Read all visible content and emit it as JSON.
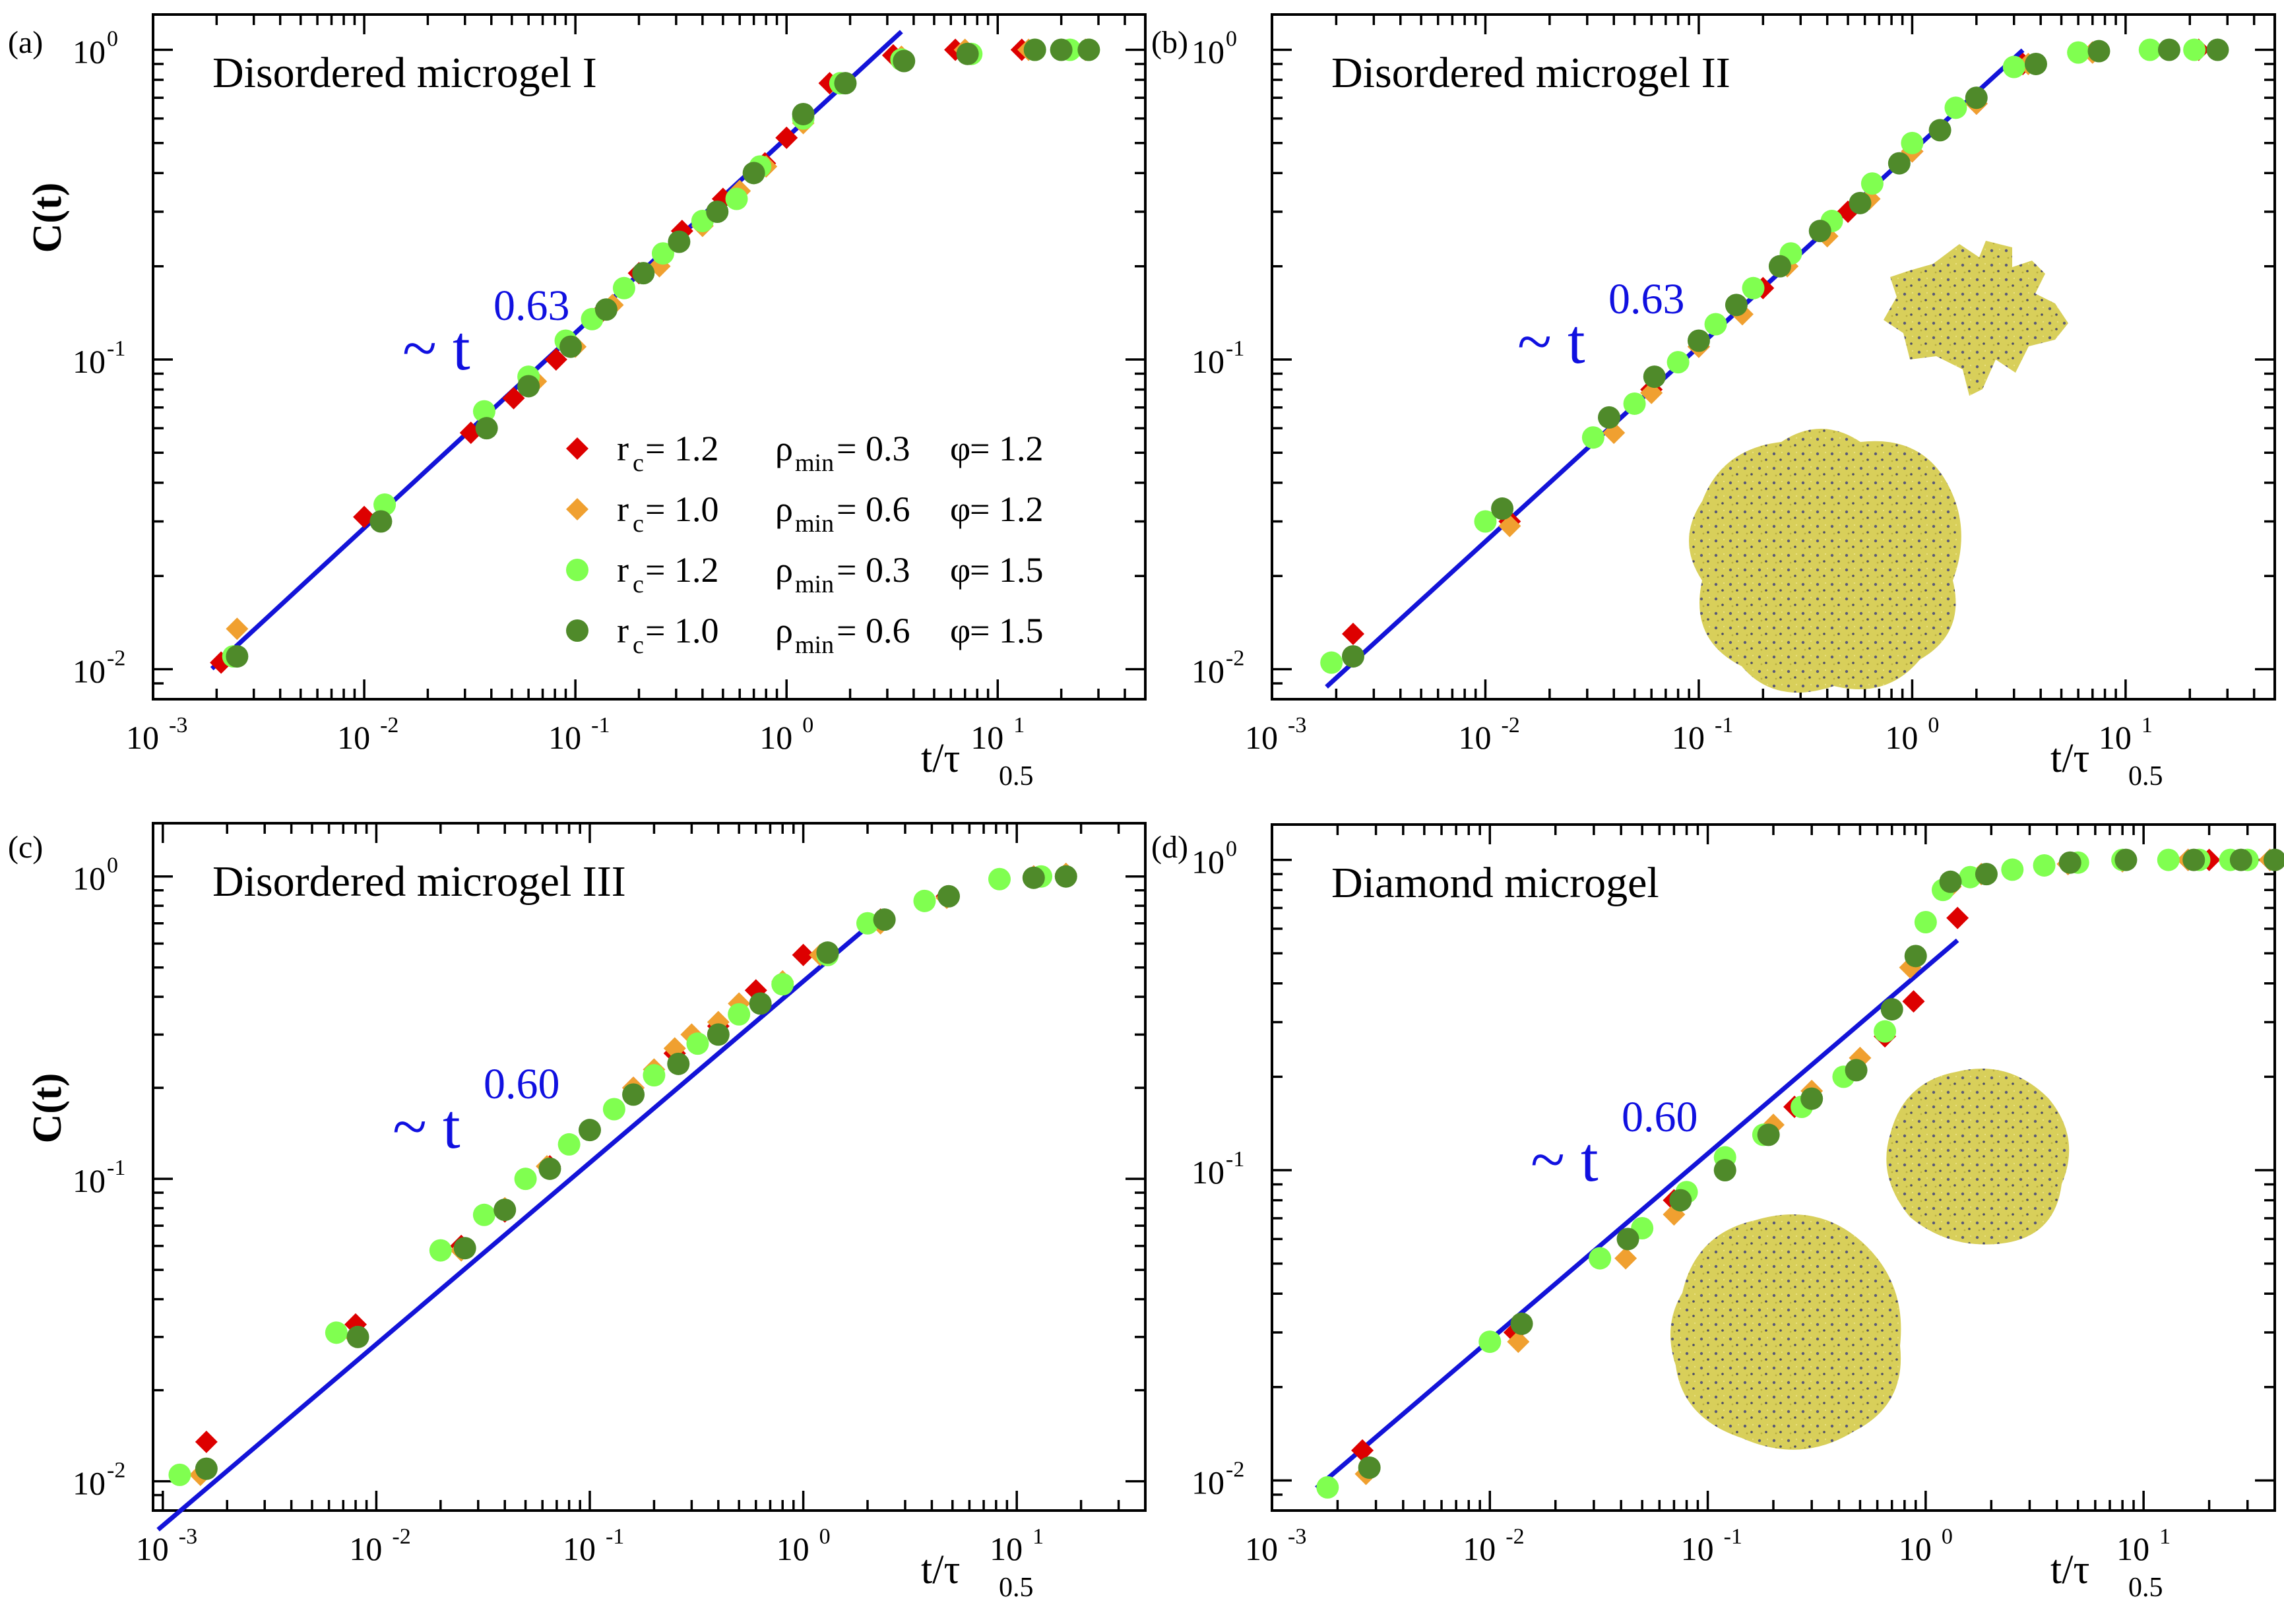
{
  "x_axis_label": "t/τ",
  "x_axis_label_sub": "0.5",
  "y_axis_label": "C(t)",
  "legend": [
    {
      "rc": "1.2",
      "rho": "0.3",
      "phi": "1.2",
      "color": "#dd0000",
      "marker": "diamond"
    },
    {
      "rc": "1.0",
      "rho": "0.6",
      "phi": "1.2",
      "color": "#f0a030",
      "marker": "diamond"
    },
    {
      "rc": "1.2",
      "rho": "0.3",
      "phi": "1.5",
      "color": "#80ff50",
      "marker": "circle"
    },
    {
      "rc": "1.0",
      "rho": "0.6",
      "phi": "1.5",
      "color": "#4f8a2a",
      "marker": "circle"
    }
  ],
  "legend_labels": {
    "rc": "r",
    "rc_sub": "c",
    "rho": "ρ",
    "rho_sub": "min",
    "phi": "φ",
    "eq": " = "
  },
  "x_ticks": [
    {
      "base": "10",
      "exp": "-3"
    },
    {
      "base": "10",
      "exp": "-2"
    },
    {
      "base": "10",
      "exp": "-1"
    },
    {
      "base": "10",
      "exp": "0"
    },
    {
      "base": "10",
      "exp": "1"
    }
  ],
  "y_ticks": [
    {
      "base": "10",
      "exp": "-2"
    },
    {
      "base": "10",
      "exp": "-1"
    },
    {
      "base": "10",
      "exp": "0"
    }
  ],
  "chart_data": [
    {
      "panel": "(a)",
      "title": "Disordered microgel I",
      "type": "scatter",
      "xscale": "log",
      "yscale": "log",
      "xlim": [
        0.001,
        50
      ],
      "ylim": [
        0.008,
        1.3
      ],
      "fit": {
        "label": "~ t",
        "exponent": "0.63",
        "x_range": [
          0.0019,
          3.5
        ]
      },
      "series": [
        {
          "name": "rc=1.2 ρmin=0.3 φ=1.2",
          "x": [
            0.0021,
            0.01,
            0.032,
            0.051,
            0.081,
            0.13,
            0.2,
            0.32,
            0.5,
            0.79,
            1.0,
            1.6,
            3.2,
            6.3,
            13,
            20,
            26
          ],
          "y": [
            0.0105,
            0.031,
            0.058,
            0.075,
            0.1,
            0.14,
            0.19,
            0.26,
            0.33,
            0.43,
            0.52,
            0.78,
            0.96,
            1.0,
            1.0,
            1.0,
            1.0
          ]
        },
        {
          "name": "rc=1.0 ρmin=0.6 φ=1.2",
          "x": [
            0.0025,
            0.012,
            0.038,
            0.065,
            0.1,
            0.15,
            0.25,
            0.4,
            0.6,
            0.8,
            1.2,
            1.8,
            3.5,
            7,
            14,
            20,
            26
          ],
          "y": [
            0.0135,
            0.03,
            0.06,
            0.085,
            0.11,
            0.15,
            0.2,
            0.27,
            0.35,
            0.42,
            0.58,
            0.78,
            0.95,
            1.0,
            1.0,
            1.0,
            1.0
          ]
        },
        {
          "name": "rc=1.2 ρmin=0.3 φ=1.5",
          "x": [
            0.0024,
            0.0125,
            0.037,
            0.06,
            0.09,
            0.12,
            0.17,
            0.26,
            0.4,
            0.58,
            0.75,
            1.2,
            1.8,
            3.5,
            7.5,
            15,
            22,
            27
          ],
          "y": [
            0.011,
            0.034,
            0.068,
            0.088,
            0.115,
            0.135,
            0.17,
            0.22,
            0.28,
            0.33,
            0.42,
            0.6,
            0.78,
            0.93,
            0.97,
            1.0,
            1.0,
            1.0
          ]
        },
        {
          "name": "rc=1.0 ρmin=0.6 φ=1.5",
          "x": [
            0.0025,
            0.012,
            0.038,
            0.06,
            0.095,
            0.14,
            0.21,
            0.31,
            0.47,
            0.7,
            1.2,
            1.9,
            3.6,
            7.2,
            15,
            20,
            27
          ],
          "y": [
            0.011,
            0.03,
            0.06,
            0.082,
            0.11,
            0.145,
            0.19,
            0.24,
            0.3,
            0.4,
            0.62,
            0.78,
            0.92,
            0.97,
            1.0,
            1.0,
            1.0
          ]
        }
      ]
    },
    {
      "panel": "(b)",
      "title": "Disordered microgel II",
      "type": "scatter",
      "xscale": "log",
      "yscale": "log",
      "xlim": [
        0.001,
        50
      ],
      "ylim": [
        0.008,
        1.3
      ],
      "fit": {
        "label": "~ t",
        "exponent": "0.63",
        "x_range": [
          0.0018,
          3.3
        ]
      },
      "series": [
        {
          "name": "rc=1.2 ρmin=0.3 φ=1.2",
          "x": [
            0.0024,
            0.013,
            0.06,
            0.1,
            0.2,
            0.5,
            1.0,
            2.0,
            3.3,
            7.0,
            16,
            22
          ],
          "y": [
            0.013,
            0.03,
            0.08,
            0.11,
            0.17,
            0.3,
            0.47,
            0.67,
            0.9,
            0.98,
            1.0,
            1.0
          ]
        },
        {
          "name": "rc=1.0 ρmin=0.6 φ=1.2",
          "x": [
            0.0024,
            0.013,
            0.04,
            0.06,
            0.1,
            0.16,
            0.26,
            0.4,
            0.63,
            1.0,
            2.0,
            3.5,
            7.0,
            16,
            27
          ],
          "y": [
            0.011,
            0.029,
            0.058,
            0.078,
            0.11,
            0.14,
            0.2,
            0.25,
            0.33,
            0.47,
            0.67,
            0.9,
            0.98,
            1.0,
            1.0
          ]
        },
        {
          "name": "rc=1.2 ρmin=0.3 φ=1.5",
          "x": [
            0.0019,
            0.01,
            0.032,
            0.05,
            0.08,
            0.12,
            0.18,
            0.27,
            0.42,
            0.65,
            1.0,
            1.6,
            3.0,
            6.0,
            13,
            21
          ],
          "y": [
            0.0105,
            0.03,
            0.056,
            0.072,
            0.098,
            0.13,
            0.17,
            0.22,
            0.28,
            0.37,
            0.5,
            0.65,
            0.88,
            0.98,
            1.0,
            1.0
          ]
        },
        {
          "name": "rc=1.0 ρmin=0.6 φ=1.5",
          "x": [
            0.0024,
            0.012,
            0.038,
            0.062,
            0.1,
            0.15,
            0.24,
            0.37,
            0.57,
            0.87,
            1.35,
            2.0,
            3.8,
            7.5,
            16,
            27
          ],
          "y": [
            0.011,
            0.033,
            0.065,
            0.088,
            0.115,
            0.15,
            0.2,
            0.26,
            0.32,
            0.43,
            0.55,
            0.7,
            0.9,
            0.99,
            1.0,
            1.0
          ]
        }
      ]
    },
    {
      "panel": "(c)",
      "title": "Disordered microgel III",
      "type": "scatter",
      "xscale": "log",
      "yscale": "log",
      "xlim": [
        0.0009,
        40
      ],
      "ylim": [
        0.008,
        1.5
      ],
      "fit": {
        "label": "~ t",
        "exponent": "0.60",
        "x_range": [
          0.00095,
          2.1
        ]
      },
      "series": [
        {
          "name": "rc=1.2 ρmin=0.3 φ=1.2",
          "x": [
            0.0016,
            0.008,
            0.025,
            0.04,
            0.065,
            0.1,
            0.16,
            0.25,
            0.4,
            0.6,
            1.0,
            2.3,
            4.7,
            12,
            17
          ],
          "y": [
            0.0135,
            0.033,
            0.06,
            0.078,
            0.11,
            0.145,
            0.2,
            0.26,
            0.32,
            0.42,
            0.55,
            0.72,
            0.86,
            1.0,
            1.0
          ]
        },
        {
          "name": "rc=1.0 ρmin=0.6 φ=1.2",
          "x": [
            0.0015,
            0.008,
            0.025,
            0.04,
            0.063,
            0.1,
            0.13,
            0.16,
            0.2,
            0.25,
            0.3,
            0.4,
            0.5,
            0.8,
            1.2,
            2.3,
            4.7,
            12,
            17
          ],
          "y": [
            0.0105,
            0.03,
            0.058,
            0.08,
            0.11,
            0.145,
            0.17,
            0.2,
            0.23,
            0.27,
            0.3,
            0.33,
            0.38,
            0.45,
            0.55,
            0.7,
            0.85,
            1.0,
            1.02
          ]
        },
        {
          "name": "rc=1.2 ρmin=0.3 φ=1.5",
          "x": [
            0.0012,
            0.0065,
            0.02,
            0.032,
            0.05,
            0.08,
            0.13,
            0.2,
            0.32,
            0.5,
            0.8,
            1.3,
            2.0,
            3.7,
            8.3,
            13
          ],
          "y": [
            0.0105,
            0.031,
            0.058,
            0.076,
            0.1,
            0.13,
            0.17,
            0.22,
            0.28,
            0.35,
            0.44,
            0.55,
            0.7,
            0.83,
            0.98,
            1.0
          ]
        },
        {
          "name": "rc=1.0 ρmin=0.6 φ=1.5",
          "x": [
            0.0016,
            0.0082,
            0.026,
            0.04,
            0.065,
            0.1,
            0.16,
            0.26,
            0.4,
            0.63,
            1.3,
            2.4,
            4.8,
            12,
            17
          ],
          "y": [
            0.011,
            0.03,
            0.059,
            0.079,
            0.108,
            0.145,
            0.19,
            0.24,
            0.3,
            0.38,
            0.56,
            0.72,
            0.86,
            0.99,
            1.0
          ]
        }
      ]
    },
    {
      "panel": "(d)",
      "title": "Diamond microgel",
      "type": "scatter",
      "xscale": "log",
      "yscale": "log",
      "xlim": [
        0.001,
        40
      ],
      "ylim": [
        0.008,
        1.3
      ],
      "fit": {
        "label": "~ t",
        "exponent": "0.60",
        "x_range": [
          0.0016,
          1.4
        ]
      },
      "series": [
        {
          "name": "rc=1.2 ρmin=0.3 φ=1.2",
          "x": [
            0.0026,
            0.013,
            0.07,
            0.25,
            0.65,
            0.88,
            1.4,
            4.5,
            8,
            16,
            20,
            38
          ],
          "y": [
            0.0125,
            0.03,
            0.08,
            0.16,
            0.27,
            0.35,
            0.65,
            0.97,
            0.99,
            1.0,
            1.0,
            1.0
          ]
        },
        {
          "name": "rc=1.0 ρmin=0.6 φ=1.2",
          "x": [
            0.0027,
            0.0135,
            0.042,
            0.07,
            0.12,
            0.2,
            0.3,
            0.5,
            0.85,
            1.3,
            1.8,
            4.5,
            8,
            16,
            38
          ],
          "y": [
            0.0105,
            0.028,
            0.052,
            0.072,
            0.1,
            0.14,
            0.18,
            0.23,
            0.45,
            0.82,
            0.9,
            0.97,
            0.99,
            1.0,
            1.0
          ]
        },
        {
          "name": "rc=1.2 ρmin=0.3 φ=1.5",
          "x": [
            0.0018,
            0.01,
            0.032,
            0.05,
            0.08,
            0.12,
            0.18,
            0.27,
            0.42,
            0.65,
            1.0,
            1.2,
            1.6,
            2.5,
            3.5,
            5,
            8,
            13,
            18,
            25,
            30
          ],
          "y": [
            0.0095,
            0.028,
            0.052,
            0.065,
            0.085,
            0.11,
            0.13,
            0.16,
            0.2,
            0.28,
            0.63,
            0.8,
            0.88,
            0.93,
            0.96,
            0.98,
            1.0,
            1.0,
            1.0,
            1.0,
            1.0
          ]
        },
        {
          "name": "rc=1.0 ρmin=0.6 φ=1.5",
          "x": [
            0.0028,
            0.014,
            0.043,
            0.075,
            0.12,
            0.19,
            0.3,
            0.48,
            0.7,
            0.9,
            1.3,
            1.9,
            4.6,
            8.3,
            17,
            28,
            40
          ],
          "y": [
            0.011,
            0.032,
            0.06,
            0.08,
            0.1,
            0.13,
            0.17,
            0.21,
            0.33,
            0.49,
            0.85,
            0.9,
            0.98,
            1.0,
            1.0,
            1.0,
            1.0
          ]
        }
      ]
    }
  ]
}
